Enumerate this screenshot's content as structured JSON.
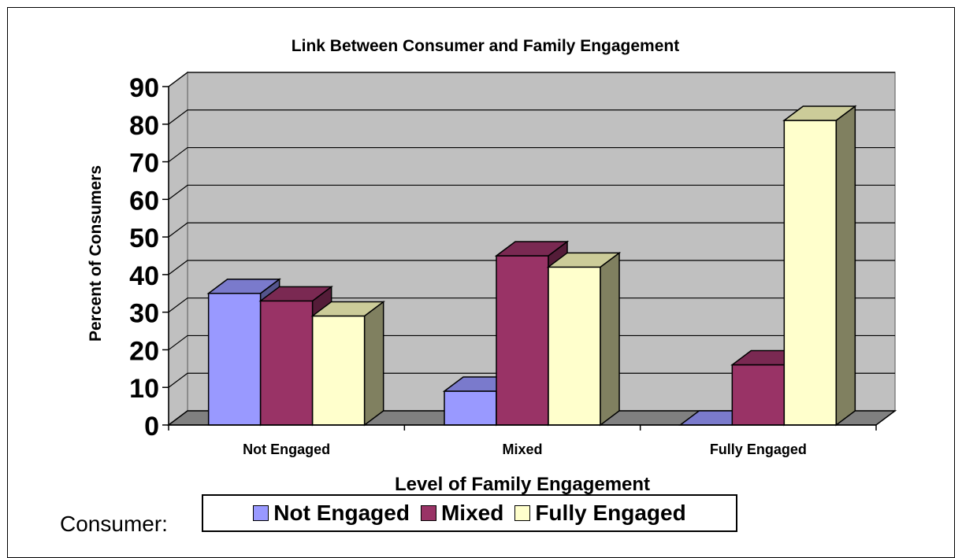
{
  "chart_data": {
    "type": "bar",
    "title": "Link Between Consumer and Family Engagement",
    "xlabel": "Level of Family Engagement",
    "ylabel": "Percent of Consumers",
    "categories": [
      "Not Engaged",
      "Mixed",
      "Fully Engaged"
    ],
    "series": [
      {
        "name": "Not Engaged",
        "color": "#9999ff",
        "values": [
          35,
          9,
          0
        ]
      },
      {
        "name": "Mixed",
        "color": "#993366",
        "values": [
          33,
          45,
          16
        ]
      },
      {
        "name": "Fully Engaged",
        "color": "#ffffcc",
        "values": [
          29,
          42,
          81
        ]
      }
    ],
    "ylim": [
      0,
      90
    ],
    "yticks": [
      "0",
      "10",
      "20",
      "30",
      "40",
      "50",
      "60",
      "70",
      "80",
      "90"
    ],
    "grid": true,
    "three_d": true,
    "legend_position": "bottom"
  },
  "caption": "Consumer:"
}
